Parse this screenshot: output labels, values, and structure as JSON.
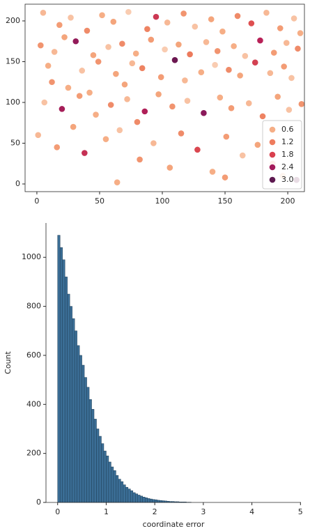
{
  "chart_data": [
    {
      "type": "scatter",
      "x": [
        5,
        18,
        27,
        40,
        52,
        61,
        73,
        88,
        95,
        104,
        117,
        126,
        139,
        148,
        160,
        171,
        183,
        194,
        205,
        210,
        3,
        14,
        31,
        45,
        57,
        68,
        79,
        91,
        102,
        113,
        122,
        135,
        144,
        157,
        166,
        178,
        189,
        199,
        208,
        22,
        9,
        36,
        49,
        63,
        76,
        84,
        99,
        110,
        131,
        142,
        153,
        162,
        174,
        186,
        197,
        203,
        12,
        25,
        70,
        118,
        6,
        20,
        34,
        47,
        59,
        72,
        86,
        97,
        108,
        120,
        133,
        146,
        155,
        169,
        180,
        192,
        201,
        211,
        42,
        80,
        1,
        16,
        29,
        38,
        55,
        66,
        82,
        93,
        106,
        115,
        128,
        140,
        151,
        164,
        176,
        188,
        196,
        207,
        64,
        150
      ],
      "y": [
        210,
        195,
        204,
        188,
        207,
        199,
        211,
        190,
        205,
        198,
        209,
        193,
        202,
        187,
        206,
        197,
        210,
        191,
        203,
        185,
        170,
        162,
        175,
        158,
        168,
        172,
        160,
        177,
        165,
        171,
        159,
        174,
        163,
        169,
        157,
        176,
        161,
        173,
        166,
        180,
        145,
        139,
        150,
        135,
        148,
        142,
        131,
        152,
        137,
        146,
        140,
        133,
        149,
        136,
        144,
        130,
        125,
        118,
        122,
        127,
        100,
        92,
        108,
        85,
        97,
        104,
        89,
        110,
        95,
        102,
        87,
        106,
        93,
        99,
        83,
        107,
        91,
        98,
        112,
        76,
        60,
        45,
        70,
        38,
        55,
        66,
        30,
        50,
        20,
        62,
        42,
        15,
        58,
        35,
        48,
        25,
        10,
        5,
        2,
        8
      ],
      "hue": [
        0.4,
        0.7,
        0.3,
        0.9,
        0.5,
        0.6,
        0.2,
        1.0,
        1.9,
        0.4,
        0.8,
        0.3,
        0.6,
        0.5,
        0.9,
        1.6,
        0.4,
        0.7,
        0.3,
        0.5,
        0.8,
        0.4,
        2.6,
        0.6,
        0.3,
        0.9,
        0.5,
        0.7,
        0.2,
        0.6,
        1.1,
        0.4,
        0.8,
        0.5,
        0.3,
        2.2,
        0.7,
        0.4,
        0.9,
        0.6,
        0.5,
        0.3,
        0.8,
        0.6,
        0.4,
        1.0,
        0.7,
        3.0,
        0.5,
        0.2,
        0.9,
        0.6,
        1.8,
        0.4,
        0.7,
        0.3,
        0.8,
        0.5,
        0.6,
        0.4,
        0.3,
        2.4,
        0.7,
        0.5,
        0.9,
        0.4,
        2.3,
        0.6,
        0.8,
        0.3,
        2.7,
        0.5,
        0.7,
        0.4,
        1.0,
        0.6,
        0.3,
        0.8,
        0.5,
        0.9,
        0.4,
        0.7,
        0.6,
        2.0,
        0.5,
        0.3,
        0.8,
        0.4,
        0.6,
        0.9,
        1.7,
        0.5,
        0.7,
        0.3,
        0.6,
        0.8,
        0.4,
        3.1,
        0.5,
        0.7
      ],
      "hue_norm": [
        0,
        3.3
      ],
      "palette": [
        "#fbe0ce",
        "#f5a97f",
        "#ec7a5c",
        "#dd4b4f",
        "#b82157",
        "#85185a",
        "#4f1746"
      ],
      "xlim": [
        -9.4,
        213.3
      ],
      "ylim": [
        -9.4,
        220.5
      ],
      "xticks": [
        0,
        50,
        100,
        150,
        200
      ],
      "yticks": [
        0,
        50,
        100,
        150,
        200
      ],
      "legend_position": "lower right",
      "legend": [
        {
          "label": "0.6",
          "color": "#f5ae86"
        },
        {
          "label": "1.2",
          "color": "#ee7c5e"
        },
        {
          "label": "1.8",
          "color": "#d9404e"
        },
        {
          "label": "2.4",
          "color": "#a31a5a"
        },
        {
          "label": "3.0",
          "color": "#5e1a51"
        }
      ]
    },
    {
      "type": "histogram",
      "xlabel": "coordinate error",
      "ylabel": "Count",
      "bins": [
        0,
        0.05,
        0.1,
        0.15,
        0.2,
        0.25,
        0.3,
        0.35,
        0.4,
        0.45,
        0.5,
        0.55,
        0.6,
        0.65,
        0.7,
        0.75,
        0.8,
        0.85,
        0.9,
        0.95,
        1.0,
        1.05,
        1.1,
        1.15,
        1.2,
        1.25,
        1.3,
        1.35,
        1.4,
        1.45,
        1.5,
        1.55,
        1.6,
        1.65,
        1.7,
        1.75,
        1.8,
        1.85,
        1.9,
        1.95,
        2.0,
        2.05,
        2.1,
        2.15,
        2.2,
        2.25,
        2.3,
        2.35,
        2.4,
        2.45,
        2.5,
        2.55,
        2.6,
        2.65,
        2.7,
        2.75
      ],
      "counts": [
        1090,
        1040,
        990,
        920,
        850,
        800,
        750,
        700,
        640,
        600,
        560,
        510,
        470,
        420,
        380,
        340,
        300,
        270,
        240,
        210,
        190,
        165,
        145,
        130,
        110,
        95,
        85,
        72,
        62,
        55,
        48,
        40,
        35,
        30,
        26,
        22,
        19,
        16,
        14,
        12,
        11,
        9,
        8,
        7,
        6,
        5,
        4,
        4,
        3,
        3,
        2,
        2,
        2,
        1,
        1
      ],
      "color": "#3b6e96",
      "edgecolor": "#1f3e56",
      "xlim": [
        -0.24,
        5.01
      ],
      "ylim": [
        0,
        1140
      ],
      "xticks": [
        0,
        1,
        2,
        3,
        4,
        5
      ],
      "yticks": [
        0,
        200,
        400,
        600,
        800,
        1000
      ]
    }
  ]
}
